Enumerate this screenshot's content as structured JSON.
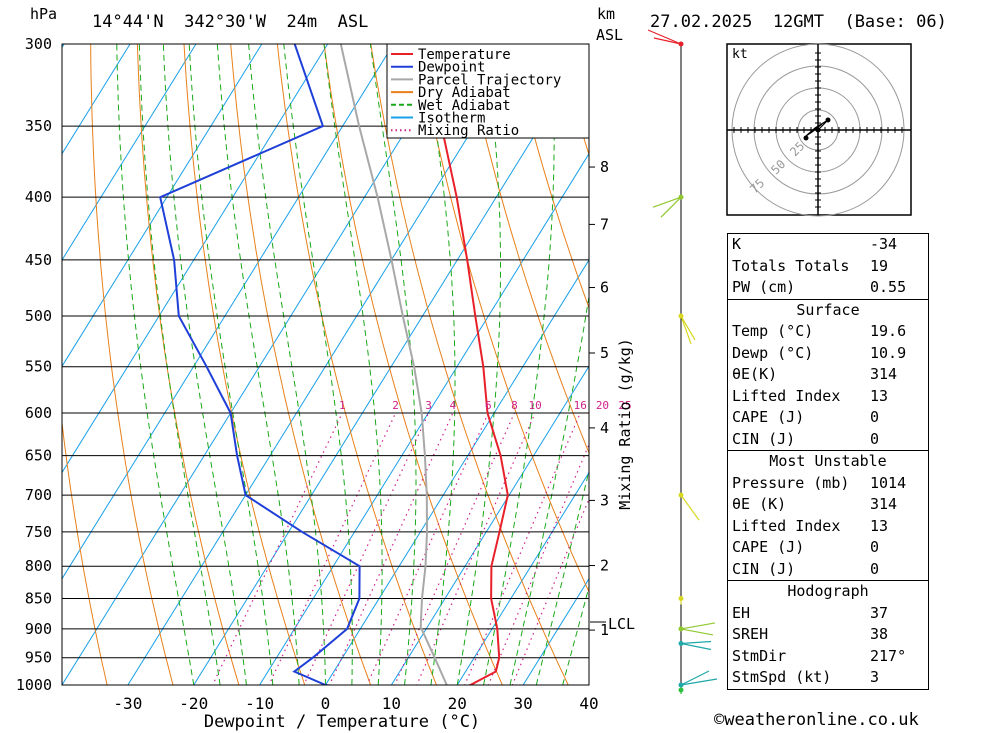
{
  "header": {
    "pressure_unit": "hPa",
    "location": "14°44'N  342°30'W  24m  ASL",
    "height_unit": "km",
    "height_ref": "ASL",
    "datetime": "27.02.2025  12GMT  (Base: 06)"
  },
  "chart_data": {
    "type": "line",
    "subtype": "skew-T log-P diagram",
    "xlabel": "Dewpoint / Temperature (°C)",
    "ylabel": "hPa",
    "y2label": "Mixing Ratio (g/kg)",
    "xlim": [
      -40,
      40
    ],
    "ylim": [
      1000,
      300
    ],
    "pressure_levels": [
      300,
      350,
      400,
      450,
      500,
      550,
      600,
      650,
      700,
      750,
      800,
      850,
      900,
      950,
      1000
    ],
    "x_ticks": [
      -30,
      -20,
      -10,
      0,
      10,
      20,
      30,
      40
    ],
    "height_km_ticks": [
      {
        "km": "8",
        "p": 378
      },
      {
        "km": "7",
        "p": 421
      },
      {
        "km": "6",
        "p": 474
      },
      {
        "km": "5",
        "p": 536
      },
      {
        "km": "4",
        "p": 617
      },
      {
        "km": "3",
        "p": 707
      },
      {
        "km": "2",
        "p": 799
      },
      {
        "km": "1",
        "p": 902
      }
    ],
    "lcl": {
      "label": "LCL",
      "p": 897
    },
    "mixing_ratio_labels": [
      "1",
      "2",
      "3",
      "4",
      "6",
      "8",
      "10",
      "16",
      "20",
      "25"
    ],
    "legend": [
      {
        "name": "Temperature",
        "color": "#e8202a",
        "style": "solid"
      },
      {
        "name": "Dewpoint",
        "color": "#1f40d8",
        "style": "solid"
      },
      {
        "name": "Parcel Trajectory",
        "color": "#a8a8a8",
        "style": "solid"
      },
      {
        "name": "Dry Adiabat",
        "color": "#e8801a",
        "style": "solid"
      },
      {
        "name": "Wet Adiabat",
        "color": "#1aa81a",
        "style": "dashed"
      },
      {
        "name": "Isotherm",
        "color": "#1aa0e8",
        "style": "solid"
      },
      {
        "name": "Mixing Ratio",
        "color": "#d0208a",
        "style": "dotted"
      }
    ],
    "series": [
      {
        "name": "Temperature",
        "points": [
          {
            "p": 1014,
            "t": 19.6
          },
          {
            "p": 1000,
            "t": 22.0
          },
          {
            "p": 975,
            "t": 24.6
          },
          {
            "p": 950,
            "t": 23.8
          },
          {
            "p": 900,
            "t": 20.8
          },
          {
            "p": 850,
            "t": 17.0
          },
          {
            "p": 800,
            "t": 14.0
          },
          {
            "p": 750,
            "t": 12.0
          },
          {
            "p": 700,
            "t": 9.8
          },
          {
            "p": 650,
            "t": 5.0
          },
          {
            "p": 600,
            "t": -1.0
          },
          {
            "p": 550,
            "t": -6.0
          },
          {
            "p": 500,
            "t": -12.0
          },
          {
            "p": 450,
            "t": -18.5
          },
          {
            "p": 400,
            "t": -26.0
          },
          {
            "p": 350,
            "t": -35.0
          },
          {
            "p": 300,
            "t": -45.0
          }
        ]
      },
      {
        "name": "Dewpoint",
        "points": [
          {
            "p": 1014,
            "t": 10.9
          },
          {
            "p": 1000,
            "t": 0.0
          },
          {
            "p": 975,
            "t": -6.0
          },
          {
            "p": 950,
            "t": -4.5
          },
          {
            "p": 900,
            "t": -2.0
          },
          {
            "p": 850,
            "t": -3.0
          },
          {
            "p": 800,
            "t": -6.0
          },
          {
            "p": 750,
            "t": -18.0
          },
          {
            "p": 700,
            "t": -30.0
          },
          {
            "p": 650,
            "t": -35.0
          },
          {
            "p": 600,
            "t": -40.0
          },
          {
            "p": 550,
            "t": -48.0
          },
          {
            "p": 500,
            "t": -57.0
          },
          {
            "p": 450,
            "t": -63.0
          },
          {
            "p": 400,
            "t": -71.0
          },
          {
            "p": 350,
            "t": -53.0
          },
          {
            "p": 300,
            "t": -65.0
          }
        ]
      },
      {
        "name": "Parcel Trajectory",
        "points": [
          {
            "p": 1014,
            "t": 19.6
          },
          {
            "p": 950,
            "t": 14.0
          },
          {
            "p": 897,
            "t": 9.0
          },
          {
            "p": 850,
            "t": 6.5
          },
          {
            "p": 800,
            "t": 4.0
          },
          {
            "p": 750,
            "t": 1.0
          },
          {
            "p": 700,
            "t": -2.5
          },
          {
            "p": 650,
            "t": -6.5
          },
          {
            "p": 600,
            "t": -11.0
          },
          {
            "p": 550,
            "t": -16.5
          },
          {
            "p": 500,
            "t": -23.0
          },
          {
            "p": 450,
            "t": -30.0
          },
          {
            "p": 400,
            "t": -38.0
          },
          {
            "p": 350,
            "t": -47.5
          },
          {
            "p": 300,
            "t": -58.0
          }
        ]
      }
    ]
  },
  "wind_profile_colors": [
    "#e8202a",
    "#90c830",
    "#d8d820",
    "#20a8a8",
    "#30c040"
  ],
  "hodograph": {
    "unit": "kt",
    "ring_labels": [
      "25",
      "50",
      "75"
    ]
  },
  "indices": {
    "general": [
      {
        "label": "K",
        "value": "-34"
      },
      {
        "label": "Totals Totals",
        "value": "19"
      },
      {
        "label": "PW (cm)",
        "value": "0.55"
      }
    ],
    "surface": {
      "title": "Surface",
      "rows": [
        {
          "label": "Temp (°C)",
          "value": "19.6"
        },
        {
          "label": "Dewp (°C)",
          "value": "10.9"
        },
        {
          "label": "θE(K)",
          "value": "314"
        },
        {
          "label": "Lifted Index",
          "value": "13"
        },
        {
          "label": "CAPE (J)",
          "value": "0"
        },
        {
          "label": "CIN (J)",
          "value": "0"
        }
      ]
    },
    "most_unstable": {
      "title": "Most Unstable",
      "rows": [
        {
          "label": "Pressure (mb)",
          "value": "1014"
        },
        {
          "label": "θE (K)",
          "value": "314"
        },
        {
          "label": "Lifted Index",
          "value": "13"
        },
        {
          "label": "CAPE (J)",
          "value": "0"
        },
        {
          "label": "CIN (J)",
          "value": "0"
        }
      ]
    },
    "hodograph": {
      "title": "Hodograph",
      "rows": [
        {
          "label": "EH",
          "value": "37"
        },
        {
          "label": "SREH",
          "value": "38"
        },
        {
          "label": "StmDir",
          "value": "217°"
        },
        {
          "label": "StmSpd (kt)",
          "value": "3"
        }
      ]
    }
  },
  "footer": {
    "credit": "©weatheronline.co.uk"
  }
}
